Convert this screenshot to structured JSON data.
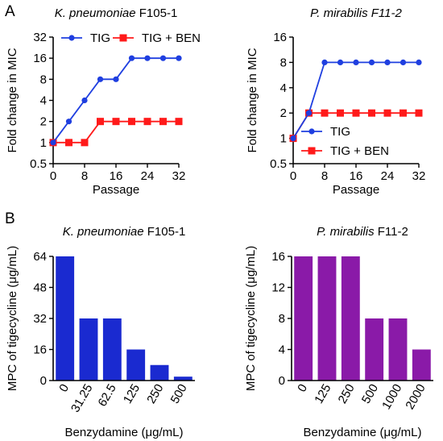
{
  "figure": {
    "panel_labels": [
      "A",
      "B"
    ]
  },
  "colors": {
    "tig": "#1f3fe0",
    "tig_ben": "#ff1a1a",
    "bar_k": "#1a2ad0",
    "bar_p": "#8a1aa8",
    "axis": "#000000"
  },
  "chart_data": [
    {
      "type": "line",
      "title_italic": "K. pneumoniae",
      "title_rest": " F105-1",
      "xlabel": "Passage",
      "ylabel": "Fold change in MIC",
      "y_scale": "log2",
      "xlim": [
        0,
        32
      ],
      "ylim": [
        0.5,
        32
      ],
      "x_ticks": [
        0,
        8,
        16,
        24,
        32
      ],
      "y_ticks": [
        0.5,
        1,
        2,
        4,
        8,
        16,
        32
      ],
      "x_tick_labels": [
        "0",
        "8",
        "16",
        "24",
        "32"
      ],
      "y_tick_labels": [
        "0.5",
        "1",
        "2",
        "4",
        "8",
        "16",
        "32"
      ],
      "legend_position": "top",
      "series": [
        {
          "name": "TIG",
          "marker": "circle",
          "x": [
            0,
            4,
            8,
            12,
            16,
            20,
            24,
            28,
            32
          ],
          "y": [
            1,
            2,
            4,
            8,
            8,
            16,
            16,
            16,
            16
          ]
        },
        {
          "name": "TIG + BEN",
          "marker": "square",
          "x": [
            0,
            4,
            8,
            12,
            16,
            20,
            24,
            28,
            32
          ],
          "y": [
            1,
            1,
            1,
            2,
            2,
            2,
            2,
            2,
            2
          ]
        }
      ]
    },
    {
      "type": "line",
      "title_italic": "P. mirabilis F11-2",
      "title_rest": "",
      "xlabel": "Passage",
      "ylabel": "Fold change in MIC",
      "y_scale": "log2",
      "xlim": [
        0,
        32
      ],
      "ylim": [
        0.5,
        16
      ],
      "x_ticks": [
        0,
        8,
        16,
        24,
        32
      ],
      "y_ticks": [
        0.5,
        1,
        2,
        4,
        8,
        16
      ],
      "x_tick_labels": [
        "0",
        "8",
        "16",
        "24",
        "32"
      ],
      "y_tick_labels": [
        "0.5",
        "1",
        "2",
        "4",
        "8",
        "16"
      ],
      "legend_position": "bottom-right",
      "series": [
        {
          "name": "TIG",
          "marker": "circle",
          "x": [
            0,
            4,
            8,
            12,
            16,
            20,
            24,
            28,
            32
          ],
          "y": [
            1,
            2,
            8,
            8,
            8,
            8,
            8,
            8,
            8
          ]
        },
        {
          "name": "TIG + BEN",
          "marker": "square",
          "x": [
            0,
            4,
            8,
            12,
            16,
            20,
            24,
            28,
            32
          ],
          "y": [
            1,
            2,
            2,
            2,
            2,
            2,
            2,
            2,
            2
          ]
        }
      ]
    },
    {
      "type": "bar",
      "title_italic": "K. pneumoniae",
      "title_rest": " F105-1",
      "xlabel": "Benzydamine (μg/mL)",
      "ylabel": "MPC of tigecycline (μg/mL)",
      "categories": [
        "0",
        "31.25",
        "62.5",
        "125",
        "250",
        "500"
      ],
      "values": [
        64,
        32,
        32,
        16,
        8,
        2
      ],
      "ylim": [
        0,
        64
      ],
      "y_ticks": [
        0,
        16,
        32,
        48,
        64
      ],
      "y_tick_labels": [
        "0",
        "16",
        "32",
        "48",
        "64"
      ]
    },
    {
      "type": "bar",
      "title_italic": "P. mirabilis",
      "title_rest": " F11-2",
      "xlabel": "Benzydamine (μg/mL)",
      "ylabel": "MPC of tigecycline (μg/mL)",
      "categories": [
        "0",
        "125",
        "250",
        "500",
        "1000",
        "2000"
      ],
      "values": [
        16,
        16,
        16,
        8,
        8,
        4
      ],
      "ylim": [
        0,
        16
      ],
      "y_ticks": [
        0,
        4,
        8,
        12,
        16
      ],
      "y_tick_labels": [
        "0",
        "4",
        "8",
        "12",
        "16"
      ]
    }
  ]
}
